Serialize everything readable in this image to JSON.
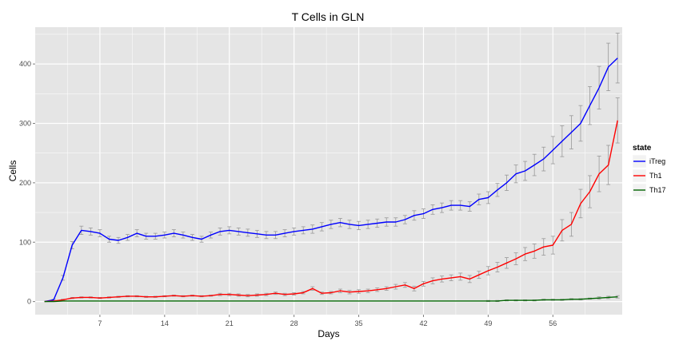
{
  "chart_data": {
    "type": "line",
    "title": "T Cells in GLN",
    "xlabel": "Days",
    "ylabel": "Cells",
    "xlim": [
      0,
      63.5
    ],
    "ylim": [
      -22,
      462
    ],
    "x_ticks": [
      7,
      14,
      21,
      28,
      35,
      42,
      49,
      56
    ],
    "y_ticks": [
      0,
      100,
      200,
      300,
      400
    ],
    "grid": true,
    "legend": {
      "title": "state",
      "position": "right"
    },
    "colors": {
      "iTreg": "#0000ff",
      "Th1": "#ff0000",
      "Th17": "#006400",
      "error_bars": "#999999",
      "panel": "#e5e5e5",
      "grid": "#ffffff"
    },
    "series": [
      {
        "name": "iTreg",
        "x": [
          1,
          2,
          3,
          4,
          5,
          6,
          7,
          8,
          9,
          10,
          11,
          12,
          13,
          14,
          15,
          16,
          17,
          18,
          19,
          20,
          21,
          22,
          23,
          24,
          25,
          26,
          27,
          28,
          29,
          30,
          31,
          32,
          33,
          34,
          35,
          36,
          37,
          38,
          39,
          40,
          41,
          42,
          43,
          44,
          45,
          46,
          47,
          48,
          49,
          50,
          51,
          52,
          53,
          54,
          55,
          56,
          57,
          58,
          59,
          60,
          61,
          62,
          63
        ],
        "y": [
          0,
          3,
          40,
          95,
          120,
          118,
          115,
          105,
          103,
          108,
          115,
          110,
          110,
          112,
          115,
          112,
          108,
          105,
          112,
          118,
          120,
          118,
          116,
          114,
          112,
          112,
          115,
          118,
          120,
          122,
          126,
          130,
          133,
          130,
          128,
          130,
          132,
          134,
          134,
          138,
          145,
          148,
          155,
          158,
          162,
          162,
          160,
          172,
          175,
          188,
          200,
          215,
          220,
          230,
          240,
          255,
          270,
          285,
          300,
          330,
          360,
          395,
          410
        ],
        "err": [
          0,
          1,
          4,
          6,
          7,
          6,
          6,
          5,
          5,
          5,
          6,
          5,
          5,
          5,
          6,
          5,
          5,
          5,
          5,
          6,
          6,
          6,
          6,
          6,
          6,
          6,
          6,
          6,
          6,
          7,
          7,
          7,
          7,
          7,
          7,
          7,
          7,
          7,
          7,
          7,
          8,
          8,
          8,
          8,
          8,
          8,
          8,
          9,
          10,
          11,
          13,
          15,
          16,
          18,
          20,
          23,
          26,
          28,
          30,
          32,
          36,
          40,
          42
        ]
      },
      {
        "name": "Th1",
        "x": [
          1,
          2,
          3,
          4,
          5,
          6,
          7,
          8,
          9,
          10,
          11,
          12,
          13,
          14,
          15,
          16,
          17,
          18,
          19,
          20,
          21,
          22,
          23,
          24,
          25,
          26,
          27,
          28,
          29,
          30,
          31,
          32,
          33,
          34,
          35,
          36,
          37,
          38,
          39,
          40,
          41,
          42,
          43,
          44,
          45,
          46,
          47,
          48,
          49,
          50,
          51,
          52,
          53,
          54,
          55,
          56,
          57,
          58,
          59,
          60,
          61,
          62,
          63
        ],
        "y": [
          0,
          1,
          3,
          6,
          7,
          7,
          6,
          7,
          8,
          9,
          9,
          8,
          8,
          9,
          10,
          9,
          10,
          9,
          10,
          12,
          12,
          11,
          10,
          11,
          12,
          14,
          12,
          13,
          15,
          22,
          14,
          15,
          18,
          16,
          17,
          18,
          20,
          22,
          25,
          28,
          22,
          30,
          35,
          38,
          40,
          42,
          38,
          45,
          52,
          58,
          65,
          72,
          80,
          85,
          92,
          95,
          120,
          130,
          165,
          185,
          215,
          230,
          305
        ],
        "err": [
          0,
          0,
          1,
          1,
          1,
          1,
          1,
          1,
          1,
          1,
          1,
          1,
          1,
          1,
          1,
          1,
          1,
          1,
          1,
          2,
          2,
          2,
          2,
          2,
          2,
          2,
          2,
          2,
          2,
          3,
          2,
          2,
          3,
          3,
          3,
          3,
          3,
          3,
          4,
          4,
          4,
          4,
          5,
          5,
          5,
          6,
          6,
          6,
          7,
          8,
          9,
          10,
          11,
          12,
          14,
          15,
          18,
          20,
          24,
          27,
          30,
          33,
          38
        ]
      },
      {
        "name": "Th17",
        "x": [
          1,
          2,
          3,
          4,
          5,
          6,
          7,
          8,
          9,
          10,
          11,
          12,
          13,
          14,
          15,
          16,
          17,
          18,
          19,
          20,
          21,
          22,
          23,
          24,
          25,
          26,
          27,
          28,
          29,
          30,
          31,
          32,
          33,
          34,
          35,
          36,
          37,
          38,
          39,
          40,
          41,
          42,
          43,
          44,
          45,
          46,
          47,
          48,
          49,
          50,
          51,
          52,
          53,
          54,
          55,
          56,
          57,
          58,
          59,
          60,
          61,
          62,
          63
        ],
        "y": [
          0,
          0,
          1,
          1,
          1,
          1,
          1,
          1,
          1,
          1,
          1,
          1,
          1,
          1,
          1,
          1,
          1,
          1,
          1,
          1,
          1,
          1,
          1,
          1,
          1,
          1,
          1,
          1,
          1,
          1,
          1,
          1,
          1,
          1,
          1,
          1,
          1,
          1,
          1,
          1,
          1,
          1,
          1,
          1,
          1,
          1,
          1,
          1,
          1,
          1,
          2,
          2,
          2,
          2,
          3,
          3,
          3,
          4,
          4,
          5,
          6,
          7,
          8
        ],
        "err": [
          0,
          0,
          0,
          0,
          0,
          0,
          0,
          0,
          0,
          0,
          0,
          0,
          0,
          0,
          0,
          0,
          0,
          0,
          0,
          0,
          0,
          0,
          0,
          0,
          0,
          0,
          0,
          0,
          0,
          0,
          0,
          0,
          0,
          0,
          0,
          0,
          0,
          0,
          0,
          0,
          0,
          0,
          0,
          0,
          0,
          0,
          0,
          0,
          1,
          1,
          1,
          1,
          1,
          1,
          1,
          1,
          1,
          1,
          1,
          1,
          2,
          2,
          2
        ]
      }
    ]
  }
}
